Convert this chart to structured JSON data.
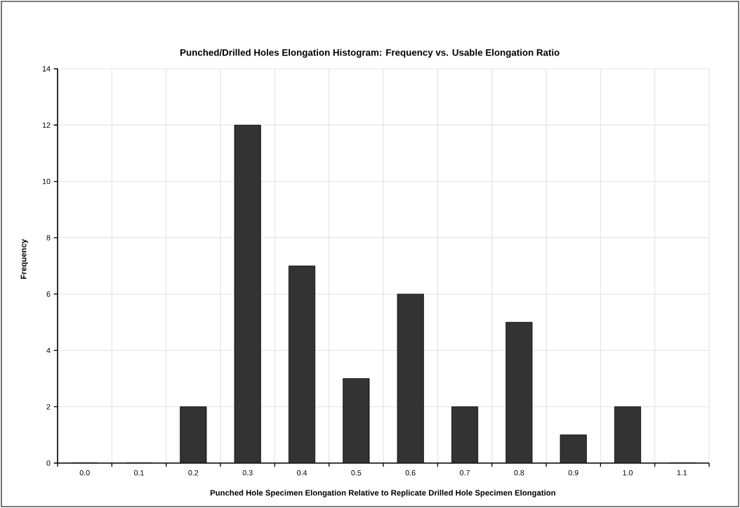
{
  "chart_data": {
    "type": "bar",
    "title": "Punched/Drilled Holes Elongation Histogram: Frequency vs. Usable Elongation Ratio",
    "xlabel": "Punched Hole Specimen Elongation Relative to Replicate Drilled Hole Specimen Elongation",
    "ylabel": "Frequency",
    "categories": [
      "0.0",
      "0.1",
      "0.2",
      "0.3",
      "0.4",
      "0.5",
      "0.6",
      "0.7",
      "0.8",
      "0.9",
      "1.0",
      "1.1"
    ],
    "values": [
      0,
      0,
      2,
      12,
      7,
      3,
      6,
      2,
      5,
      1,
      2,
      0
    ],
    "color": "#333333",
    "ylim": [
      0,
      14
    ],
    "yticks": [
      0,
      2,
      4,
      6,
      8,
      10,
      12,
      14
    ],
    "grid": true
  }
}
